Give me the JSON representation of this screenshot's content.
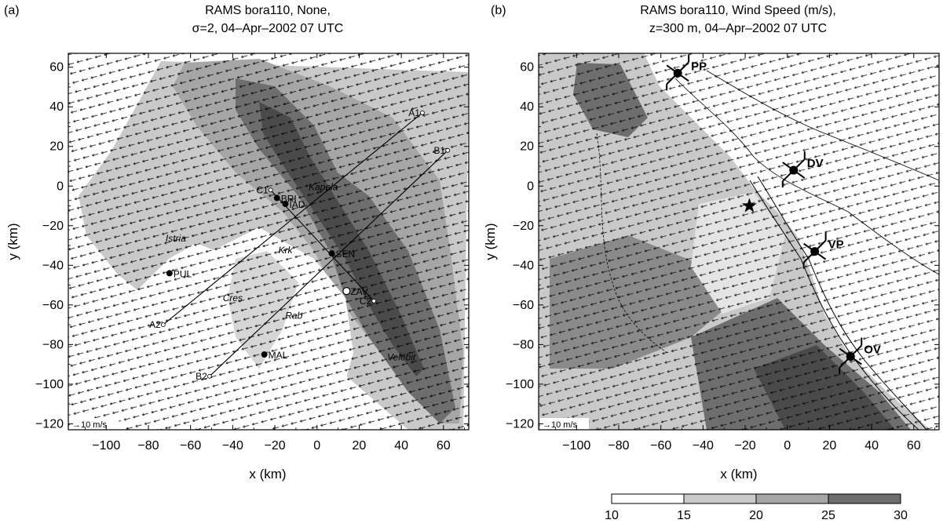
{
  "colors": {
    "level_10_15": "#ffffff",
    "level_15_20": "#c9c9c9",
    "level_20_25": "#a6a6a6",
    "level_25_30": "#6e6e6e",
    "level_30": "#4a4a4a",
    "frame": "#000000"
  },
  "chart_data": [
    {
      "type": "contour-map",
      "panel_label": "(a)",
      "title": "RAMS bora110, None,",
      "subtitle": "σ=2, 04–Apr–2002 07 UTC",
      "xlabel": "x (km)",
      "ylabel": "y (km)",
      "xlim": [
        -118,
        72
      ],
      "ylim": [
        -123,
        67
      ],
      "xticks": [
        -100,
        -80,
        -60,
        -40,
        -20,
        0,
        20,
        40,
        60
      ],
      "yticks": [
        60,
        40,
        20,
        0,
        -20,
        -40,
        -60,
        -80,
        -100,
        -120
      ],
      "reference_vector": "→10 m/s",
      "lines": [
        {
          "start": "A1",
          "end": "A2",
          "start_xy": [
            50,
            37
          ],
          "end_xy": [
            -73,
            -70
          ]
        },
        {
          "start": "B1",
          "end": "B2",
          "start_xy": [
            62,
            18
          ],
          "end_xy": [
            -51,
            -96
          ]
        },
        {
          "start": "C1",
          "end": "C2",
          "start_xy": [
            -22,
            -2
          ],
          "end_xy": [
            27,
            -58
          ]
        }
      ],
      "line_labels": [
        {
          "text": "A1",
          "x": 50,
          "y": 37
        },
        {
          "text": "A2",
          "x": -73,
          "y": -70
        },
        {
          "text": "B1",
          "x": 62,
          "y": 18
        },
        {
          "text": "B2",
          "x": -51,
          "y": -96
        },
        {
          "text": "C1",
          "x": -22,
          "y": -2
        },
        {
          "text": "C2",
          "x": 27,
          "y": -58
        }
      ],
      "stations": [
        {
          "label": "BRI",
          "x": -19,
          "y": -6,
          "marker": "dot"
        },
        {
          "label": "IAD",
          "x": -15,
          "y": -9,
          "marker": "dot"
        },
        {
          "label": "SEN",
          "x": 7,
          "y": -34,
          "marker": "dot"
        },
        {
          "label": "ZAV",
          "x": 14,
          "y": -53,
          "marker": "circle"
        },
        {
          "label": "PUL",
          "x": -70,
          "y": -44,
          "marker": "dot"
        },
        {
          "label": "MAL",
          "x": -25,
          "y": -85,
          "marker": "dot"
        }
      ],
      "place_names": [
        {
          "text": "Istria",
          "x": -67,
          "y": -28
        },
        {
          "text": "Kapela",
          "x": 3,
          "y": -2
        },
        {
          "text": "Krk",
          "x": -15,
          "y": -34
        },
        {
          "text": "Cres",
          "x": -40,
          "y": -58
        },
        {
          "text": "Rab",
          "x": -11,
          "y": -67
        },
        {
          "text": "Velebit",
          "x": 40,
          "y": -88
        }
      ]
    },
    {
      "type": "contour-map",
      "panel_label": "(b)",
      "title": "RAMS bora110, Wind Speed (m/s),",
      "subtitle": "z=300 m, 04–Apr–2002 07 UTC",
      "xlabel": "x (km)",
      "ylabel": "y (km)",
      "xlim": [
        -118,
        72
      ],
      "ylim": [
        -123,
        67
      ],
      "xticks": [
        -100,
        -80,
        -60,
        -40,
        -20,
        0,
        20,
        40,
        60
      ],
      "yticks": [
        60,
        40,
        20,
        0,
        -20,
        -40,
        -60,
        -80,
        -100,
        -120
      ],
      "reference_vector": "→10 m/s",
      "stations": [
        {
          "label": "PP",
          "x": -52,
          "y": 57
        },
        {
          "label": "DV",
          "x": 3,
          "y": 8
        },
        {
          "label": "VP",
          "x": 13,
          "y": -33
        },
        {
          "label": "OV",
          "x": 30,
          "y": -86
        }
      ],
      "star": {
        "x": -18,
        "y": -10
      },
      "colorbar": {
        "levels": [
          10,
          15,
          20,
          25,
          30
        ],
        "labels": [
          "10",
          "15",
          "20",
          "25",
          "30"
        ]
      }
    }
  ]
}
